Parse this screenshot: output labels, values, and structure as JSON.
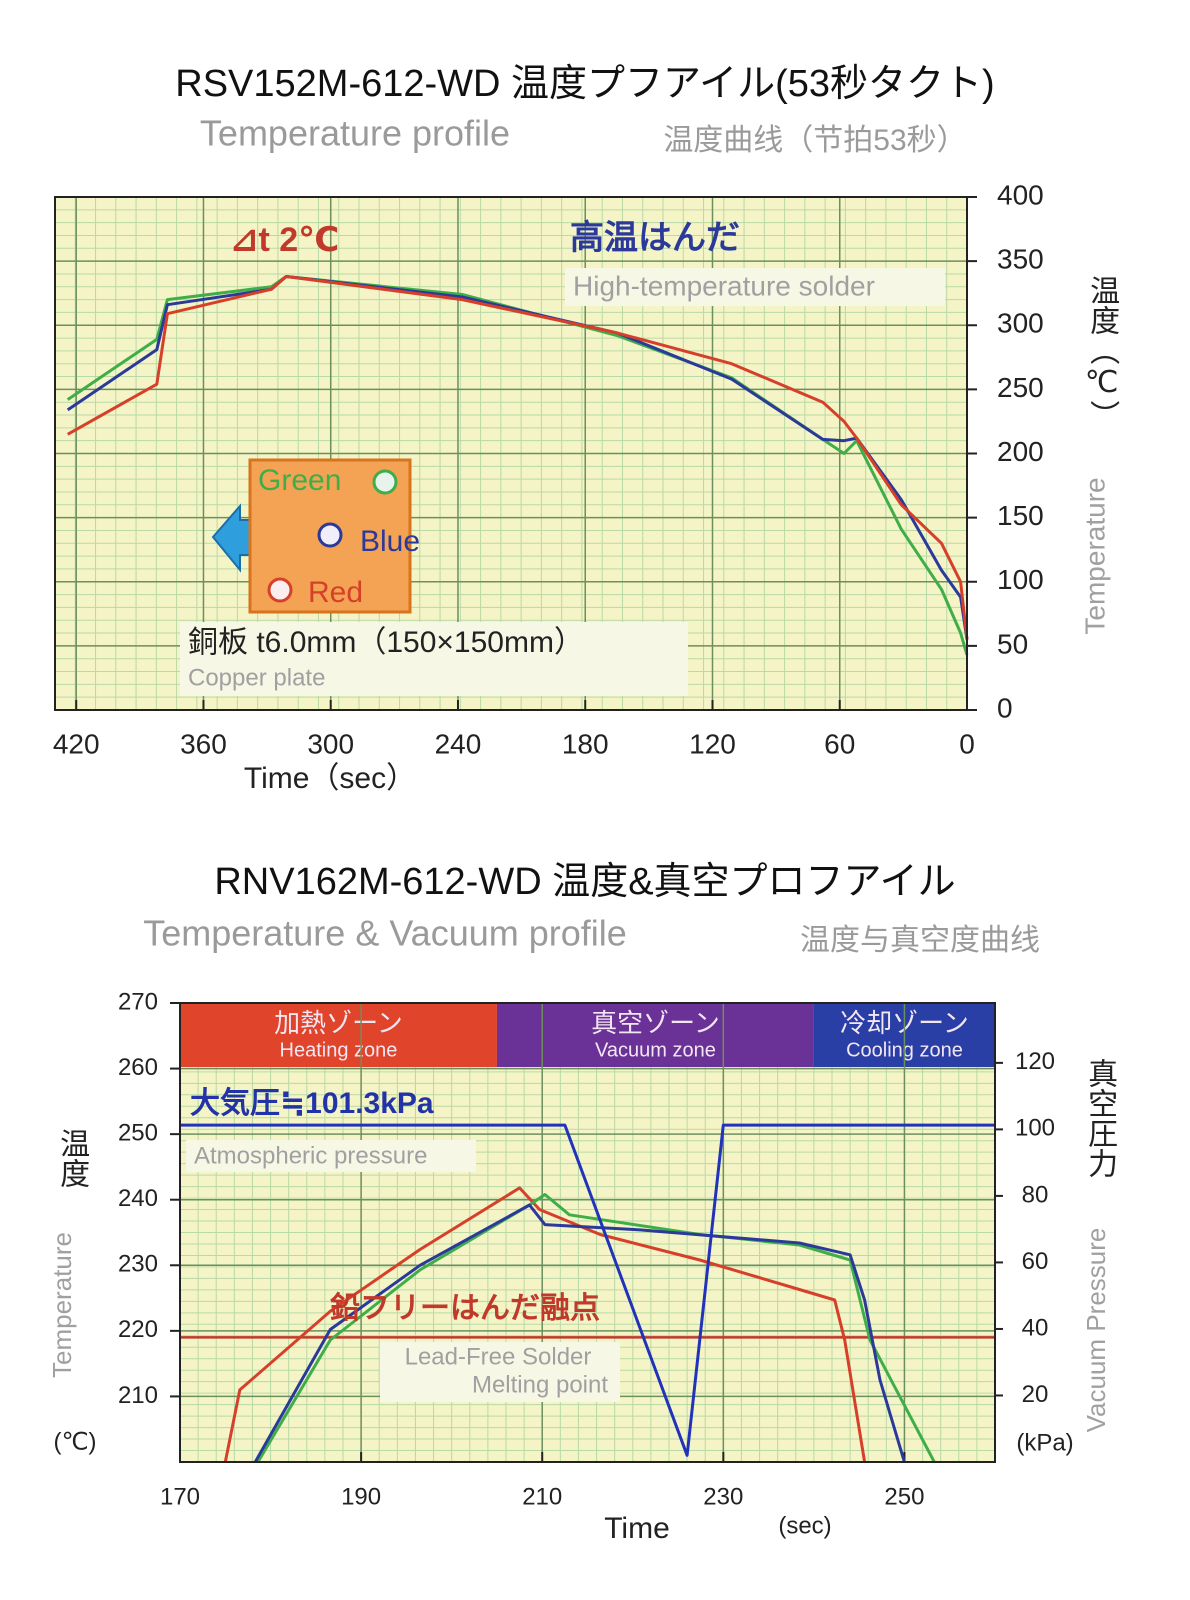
{
  "chart_data": [
    {
      "type": "line",
      "title": "RSV152M-612-WD 温度プフアイル(53秒タクト)",
      "subtitle": "Temperature profile",
      "subtitle_cn": "温度曲线（节拍53秒）",
      "xlabel": "Time（sec）",
      "ylabel": "温度（℃）",
      "ylabel_en": "Temperature",
      "delta_label": "⊿t 2℃",
      "solder_label": "高温はんだ",
      "solder_label_en": "High-temperature solder",
      "plate_label": "銅板 t6.0mm（150×150mm）",
      "plate_label_en": "Copper plate",
      "xlim": [
        430,
        0
      ],
      "xticks": [
        420,
        360,
        300,
        240,
        180,
        120,
        60,
        0
      ],
      "ylim": [
        0,
        400
      ],
      "yticks": [
        0,
        50,
        100,
        150,
        200,
        250,
        300,
        350,
        400
      ],
      "y_axis_side": "right",
      "grid": true,
      "series": [
        {
          "name": "Green",
          "color": "#3fae49",
          "x": [
            424,
            382,
            377,
            328,
            321,
            238,
            165,
            111,
            68,
            58,
            52,
            31,
            12,
            3,
            0
          ],
          "values": [
            242,
            289,
            320,
            330,
            338,
            324,
            292,
            259,
            211,
            200,
            210,
            141,
            94,
            60,
            43
          ]
        },
        {
          "name": "Blue",
          "color": "#2b3a9a",
          "x": [
            424,
            382,
            377,
            328,
            321,
            238,
            165,
            111,
            68,
            58,
            52,
            31,
            12,
            3,
            0
          ],
          "values": [
            234,
            281,
            316,
            328,
            338,
            322,
            294,
            258,
            211,
            210,
            212,
            164,
            109,
            88,
            55
          ]
        },
        {
          "name": "Red",
          "color": "#d6402a",
          "x": [
            424,
            382,
            377,
            328,
            321,
            238,
            165,
            111,
            68,
            58,
            52,
            31,
            12,
            3,
            0
          ],
          "values": [
            215,
            254,
            309,
            328,
            338,
            320,
            294,
            270,
            240,
            225,
            212,
            160,
            130,
            100,
            55
          ]
        }
      ]
    },
    {
      "type": "line",
      "title": "RNV162M-612-WD 温度&真空プロフアイル",
      "subtitle": "Temperature & Vacuum profile",
      "subtitle_cn": "温度与真空度曲线",
      "xlabel": "Time",
      "xlabel_unit": "(sec)",
      "ylabel": "温度",
      "ylabel_en": "Temperature",
      "ylabel_unit": "(℃)",
      "y2label": "真空圧力",
      "y2label_en": "Vacuum Pressure",
      "y2label_unit": "(kPa)",
      "pressure_label": "大気圧≒101.3kPa",
      "pressure_label_en": "Atmospheric pressure",
      "melting_point": {
        "value": 219,
        "label": "鉛フリーはんだ融点",
        "label_en_1": "Lead-Free Solder",
        "label_en_2": "Melting point"
      },
      "zones": [
        {
          "label": "加熱ゾーン",
          "label_en": "Heating zone",
          "start": 170,
          "end": 205,
          "color": "#e0452b"
        },
        {
          "label": "真空ゾーン",
          "label_en": "Vacuum zone",
          "start": 205,
          "end": 240,
          "color": "#6a3296"
        },
        {
          "label": "冷却ゾーン",
          "label_en": "Cooling zone",
          "start": 240,
          "end": 260,
          "color": "#2a3fa6"
        }
      ],
      "xlim": [
        170,
        260
      ],
      "xticks": [
        170,
        190,
        210,
        230,
        250
      ],
      "ylim": [
        200,
        270
      ],
      "yticks": [
        210,
        220,
        230,
        240,
        250,
        260,
        270
      ],
      "y2lim": [
        0,
        138
      ],
      "y2ticks": [
        20,
        40,
        60,
        80,
        100,
        120
      ],
      "grid": true,
      "series": [
        {
          "color": "#d6402a",
          "x": [
            175,
            176.6,
            186.6,
            196.5,
            207.5,
            209.7,
            216.4,
            227.4,
            238.4,
            242.3,
            243.4,
            245.6
          ],
          "values": [
            200,
            211,
            223,
            232.4,
            241.8,
            238.5,
            234.7,
            230.8,
            226.3,
            224.7,
            218.6,
            200
          ]
        },
        {
          "color": "#3fae49",
          "x": [
            178.6,
            186.6,
            196.5,
            208.6,
            210.3,
            213,
            227.4,
            238.4,
            244,
            246.2,
            253.3
          ],
          "values": [
            200,
            218.6,
            229.3,
            239.2,
            240.8,
            237.7,
            234.7,
            233.1,
            230.8,
            218.6,
            200
          ]
        },
        {
          "color": "#2b3a9a",
          "x": [
            178.3,
            186.6,
            196.5,
            208.6,
            210.3,
            220.8,
            238.4,
            244,
            245.6,
            247.3,
            250
          ],
          "values": [
            200,
            220.2,
            230,
            239.2,
            236.2,
            235.4,
            233.4,
            231.6,
            224.7,
            212.5,
            200
          ]
        },
        {
          "color": "#2233bb",
          "axis": "y2",
          "x": [
            170,
            212.5,
            226,
            230,
            260
          ],
          "values": [
            101.3,
            101.3,
            2,
            101.3,
            101.3
          ]
        }
      ]
    }
  ]
}
